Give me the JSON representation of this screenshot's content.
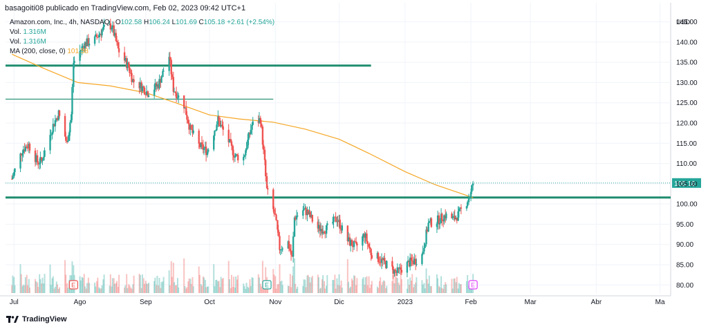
{
  "header": {
    "publisher": "basagoiti08 publicado en TradingView.com, Feb 02, 2023 09:42 UTC+1"
  },
  "legend": {
    "symbol": "Amazon.com, Inc., 4h, NASDAQ",
    "open_label": "O",
    "open": "102.58",
    "high_label": "H",
    "high": "106.24",
    "low_label": "L",
    "low": "101.69",
    "close_label": "C",
    "close": "105.18",
    "change": "+2.61 (+2.54%)",
    "vol1_label": "Vol.",
    "vol1": "1.316M",
    "vol2_label": "Vol.",
    "vol2": "1.316M",
    "ma_label": "MA (200, close, 0)",
    "ma_value": "101.58"
  },
  "brand": {
    "name": "TradingView"
  },
  "colors": {
    "up": "#26a69a",
    "down": "#ef5350",
    "ma": "#f5a623",
    "level": "#1e8c6e",
    "grid": "#f0f3fa",
    "axis_text": "#131722"
  },
  "chart_data": {
    "type": "candlestick",
    "currency": "USD",
    "ylim": [
      78,
      148
    ],
    "y_ticks": [
      80,
      85,
      90,
      95,
      100,
      105,
      110,
      115,
      120,
      125,
      130,
      135,
      140,
      145
    ],
    "y_tick_labels": [
      "80.00",
      "85.00",
      "90.00",
      "95.00",
      "100.00",
      "105.00",
      "110.00",
      "115.00",
      "120.00",
      "125.00",
      "130.00",
      "135.00",
      "140.00",
      "145.00"
    ],
    "x_labels": [
      "Jul",
      "Ago",
      "Sep",
      "Oct",
      "Nov",
      "Dic",
      "2023",
      "Feb",
      "Mar",
      "Abr",
      "Ma"
    ],
    "x_label_dates": [
      "2022-07-01",
      "2022-08-01",
      "2022-09-01",
      "2022-10-01",
      "2022-11-01",
      "2022-12-01",
      "2023-01-01",
      "2023-02-01",
      "2023-03-01",
      "2023-04-01",
      "2023-05-01"
    ],
    "last_price": 105.18,
    "last_price_label": "105.18",
    "horizontal_levels": [
      134.2,
      125.9,
      101.6
    ],
    "earnings_markers": [
      {
        "date": "2022-07-29",
        "label": "E"
      },
      {
        "date": "2022-10-28",
        "label": "E"
      },
      {
        "date": "2023-02-02",
        "label": "E"
      }
    ],
    "price_path": [
      [
        "2022-06-30",
        106.2
      ],
      [
        "2022-07-05",
        113.5
      ],
      [
        "2022-07-08",
        114.6
      ],
      [
        "2022-07-12",
        110.4
      ],
      [
        "2022-07-14",
        110.6
      ],
      [
        "2022-07-19",
        118.8
      ],
      [
        "2022-07-22",
        122.4
      ],
      [
        "2022-07-26",
        114.8
      ],
      [
        "2022-07-28",
        122.1
      ],
      [
        "2022-07-29",
        134.9
      ],
      [
        "2022-08-03",
        139.5
      ],
      [
        "2022-08-08",
        140.6
      ],
      [
        "2022-08-12",
        143.2
      ],
      [
        "2022-08-16",
        144.1
      ],
      [
        "2022-08-19",
        138.2
      ],
      [
        "2022-08-24",
        133.8
      ],
      [
        "2022-08-26",
        130.5
      ],
      [
        "2022-08-30",
        129.0
      ],
      [
        "2022-09-02",
        127.5
      ],
      [
        "2022-09-07",
        129.5
      ],
      [
        "2022-09-12",
        136.5
      ],
      [
        "2022-09-14",
        128.5
      ],
      [
        "2022-09-19",
        124.5
      ],
      [
        "2022-09-22",
        118.5
      ],
      [
        "2022-09-26",
        114.5
      ],
      [
        "2022-09-30",
        113.0
      ],
      [
        "2022-10-05",
        120.8
      ],
      [
        "2022-10-10",
        115.5
      ],
      [
        "2022-10-13",
        111.8
      ],
      [
        "2022-10-17",
        111.5
      ],
      [
        "2022-10-21",
        119.5
      ],
      [
        "2022-10-25",
        121.0
      ],
      [
        "2022-10-27",
        110.0
      ],
      [
        "2022-10-28",
        103.4
      ],
      [
        "2022-11-01",
        96.8
      ],
      [
        "2022-11-03",
        89.1
      ],
      [
        "2022-11-07",
        90.5
      ],
      [
        "2022-11-09",
        86.5
      ],
      [
        "2022-11-10",
        96.6
      ],
      [
        "2022-11-14",
        98.5
      ],
      [
        "2022-11-16",
        98.0
      ],
      [
        "2022-11-21",
        94.0
      ],
      [
        "2022-11-25",
        93.8
      ],
      [
        "2022-11-30",
        96.5
      ],
      [
        "2022-12-05",
        91.0
      ],
      [
        "2022-12-09",
        89.3
      ],
      [
        "2022-12-13",
        92.5
      ],
      [
        "2022-12-16",
        87.9
      ],
      [
        "2022-12-21",
        86.0
      ],
      [
        "2022-12-23",
        85.2
      ],
      [
        "2022-12-28",
        83.0
      ],
      [
        "2023-01-03",
        85.5
      ],
      [
        "2023-01-06",
        86.1
      ],
      [
        "2023-01-09",
        87.4
      ],
      [
        "2023-01-12",
        95.1
      ],
      [
        "2023-01-17",
        96.1
      ],
      [
        "2023-01-20",
        97.2
      ],
      [
        "2023-01-24",
        96.3
      ],
      [
        "2023-01-26",
        97.3
      ],
      [
        "2023-01-30",
        100.5
      ],
      [
        "2023-02-01",
        102.6
      ],
      [
        "2023-02-02",
        105.18
      ]
    ],
    "ma200_path": [
      [
        "2022-06-30",
        137.0
      ],
      [
        "2022-07-15",
        133.5
      ],
      [
        "2022-07-31",
        130.0
      ],
      [
        "2022-08-15",
        129.2
      ],
      [
        "2022-09-01",
        127.5
      ],
      [
        "2022-09-15",
        125.0
      ],
      [
        "2022-10-01",
        122.0
      ],
      [
        "2022-10-15",
        121.0
      ],
      [
        "2022-10-31",
        120.2
      ],
      [
        "2022-11-15",
        118.5
      ],
      [
        "2022-12-01",
        116.0
      ],
      [
        "2022-12-15",
        112.5
      ],
      [
        "2023-01-01",
        108.0
      ],
      [
        "2023-01-15",
        104.8
      ],
      [
        "2023-02-02",
        101.58
      ]
    ]
  }
}
